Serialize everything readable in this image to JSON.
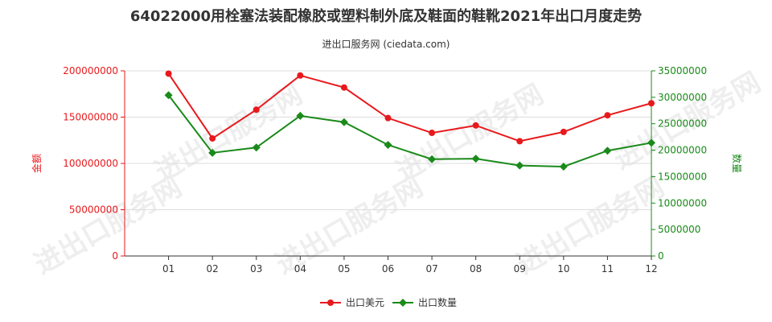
{
  "title": "64022000用栓塞法装配橡胶或塑料制外底及鞋面的鞋靴2021年出口月度走势",
  "subtitle": "进出口服务网 (ciedata.com)",
  "watermark": "进出口服务网",
  "chart_data": {
    "type": "line",
    "categories": [
      "01",
      "02",
      "03",
      "04",
      "05",
      "06",
      "07",
      "08",
      "09",
      "10",
      "11",
      "12"
    ],
    "series": [
      {
        "name": "出口美元",
        "axis": "left",
        "color": "#e8191c",
        "values": [
          197000000,
          127000000,
          158000000,
          195000000,
          182000000,
          149000000,
          133000000,
          141000000,
          124000000,
          134000000,
          152000000,
          165000000
        ]
      },
      {
        "name": "出口数量",
        "axis": "right",
        "color": "#1a8a1a",
        "values": [
          30400000,
          19500000,
          20500000,
          26500000,
          25300000,
          21000000,
          18300000,
          18400000,
          17100000,
          16900000,
          19900000,
          21400000
        ]
      }
    ],
    "ylabel_left": "金额",
    "ylabel_right": "数量",
    "ylim_left": [
      0,
      200000000
    ],
    "ylim_right": [
      0,
      35000000
    ],
    "yticks_left": [
      "0",
      "50000000",
      "100000000",
      "150000000",
      "200000000"
    ],
    "yticks_right": [
      "0",
      "5000000",
      "10000000",
      "15000000",
      "20000000",
      "25000000",
      "30000000",
      "35000000"
    ],
    "left_axis_color": "#e8191c",
    "right_axis_color": "#1a8a1a",
    "grid": true,
    "legend_position": "bottom"
  }
}
